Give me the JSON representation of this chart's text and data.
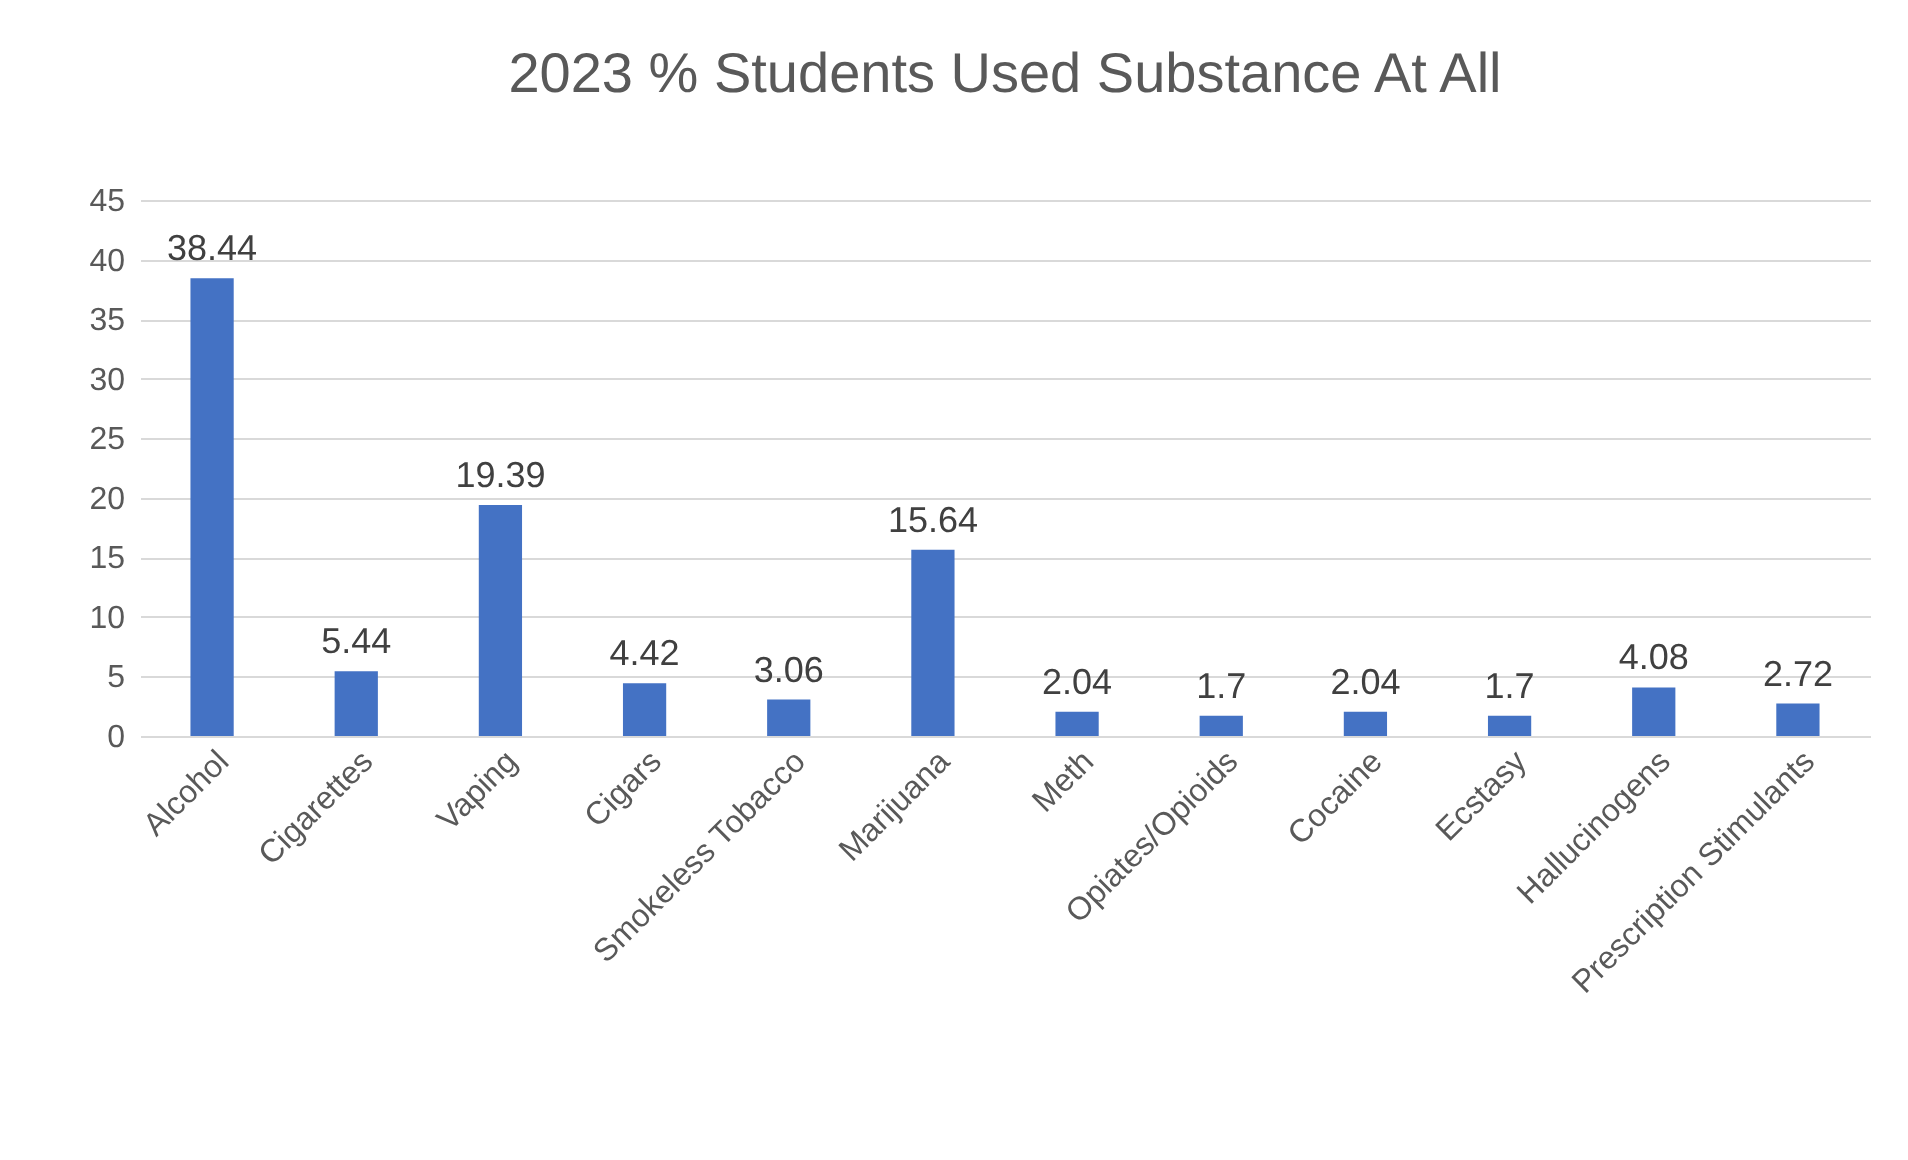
{
  "chart_data": {
    "type": "bar",
    "title": "2023 % Students Used Substance At All",
    "categories": [
      "Alcohol",
      "Cigarettes",
      "Vaping",
      "Cigars",
      "Smokeless Tobacco",
      "Marijuana",
      "Meth",
      "Opiates/Opioids",
      "Cocaine",
      "Ecstasy",
      "Hallucinogens",
      "Prescription Stimulants"
    ],
    "values": [
      38.44,
      5.44,
      19.39,
      4.42,
      3.06,
      15.64,
      2.04,
      1.7,
      2.04,
      1.7,
      4.08,
      2.72
    ],
    "color": "#4472c4",
    "ylim": [
      0,
      45
    ],
    "yticks": [
      0,
      5,
      10,
      15,
      20,
      25,
      30,
      35,
      40,
      45
    ],
    "grid": "y",
    "data_labels": true
  }
}
